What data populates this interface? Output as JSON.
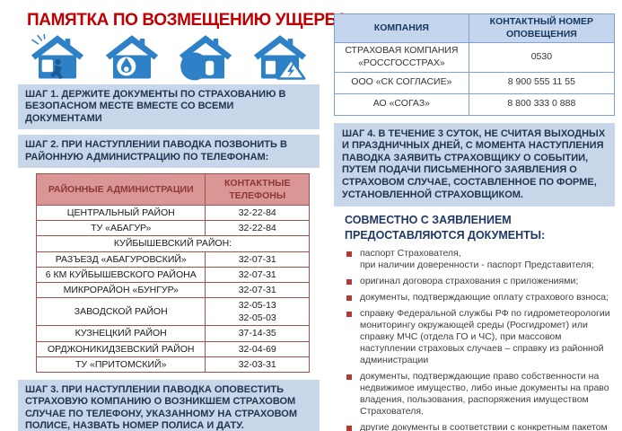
{
  "title": "ПАМЯТКА ПО ВОЗМЕЩЕНИЮ УЩЕРБА",
  "icons": [
    {
      "name": "house-burglary-icon",
      "meaning": "дом — кража"
    },
    {
      "name": "house-fire-icon",
      "meaning": "дом — пожар"
    },
    {
      "name": "house-flood-icon",
      "meaning": "дом — паводок"
    },
    {
      "name": "house-electrical-hazard-icon",
      "meaning": "дом — электроопасность"
    }
  ],
  "steps": {
    "step1": "ШАГ 1. ДЕРЖИТЕ ДОКУМЕНТЫ ПО СТРАХОВАНИЮ В БЕЗОПАСНОМ МЕСТЕ ВМЕСТЕ СО ВСЕМИ ДОКУМЕНТАМИ",
    "step2": "ШАГ 2. ПРИ НАСТУПЛЕНИИ ПАВОДКА ПОЗВОНИТЬ В РАЙОННУЮ АДМИНИСТРАЦИЮ ПО ТЕЛЕФОНАМ:",
    "step3": "ШАГ 3. ПРИ НАСТУПЛЕНИИ ПАВОДКА ОПОВЕСТИТЬ СТРАХОВУЮ КОМПАНИЮ О ВОЗНИКШЕМ СТРАХОВОМ СЛУЧАЕ ПО ТЕЛЕФОНУ, УКАЗАННОМУ НА СТРАХОВОМ ПОЛИСЕ, НАЗВАТЬ НОМЕР ПОЛИСА И ДАТУ.",
    "step4": "ШАГ 4. В ТЕЧЕНИЕ 3 СУТОК, НЕ СЧИТАЯ ВЫХОДНЫХ И ПРАЗДНИЧНЫХ ДНЕЙ, С МОМЕНТА НАСТУПЛЕНИЯ ПАВОДКА ЗАЯВИТЬ СТРАХОВЩИКУ О СОБЫТИИ, ПУТЕМ ПОДАЧИ ПИСЬМЕННОГО ЗАЯВЛЕНИЯ О СТРАХОВОМ СЛУЧАЕ, СОСТАВЛЕННОЕ ПО ФОРМЕ, УСТАНОВЛЕННОЙ СТРАХОВЩИКОМ."
  },
  "admin_table": {
    "headers": [
      "РАЙОННЫЕ АДМИНИСТРАЦИИ",
      "КОНТАКТНЫЕ ТЕЛЕФОНЫ"
    ],
    "rows": [
      {
        "name": "ЦЕНТРАЛЬНЫЙ РАЙОН",
        "phone": "32-22-84"
      },
      {
        "name": "ТУ «АБАГУР»",
        "phone": "32-22-84"
      },
      {
        "name": "КУЙБЫШЕВСКИЙ РАЙОН:",
        "section": true
      },
      {
        "name": "РАЗЪЕЗД «АБАГУРОВСКИЙ»",
        "phone": "32-07-31"
      },
      {
        "name": "6 КМ КУЙБЫШЕВСКОГО РАЙОНА",
        "phone": "32-07-31"
      },
      {
        "name": "МИКРОРАЙОН «БУНГУР»",
        "phone": "32-07-31"
      },
      {
        "name": "ЗАВОДСКОЙ РАЙОН",
        "phone": "32-05-13\n32-05-03"
      },
      {
        "name": "КУЗНЕЦКИЙ РАЙОН",
        "phone": "37-14-35"
      },
      {
        "name": "ОРДЖОНИКИДЗЕВСКИЙ РАЙОН",
        "phone": "32-04-69"
      },
      {
        "name": "ТУ «ПРИТОМСКИЙ»",
        "phone": "32-03-31"
      }
    ]
  },
  "company_table": {
    "headers": [
      "КОМПАНИЯ",
      "КОНТАКТНЫЙ НОМЕР ОПОВЕЩЕНИЯ"
    ],
    "rows": [
      {
        "name": "СТРАХОВАЯ КОМПАНИЯ\n«РОССГОССТРАХ»",
        "phone": "0530"
      },
      {
        "name": "ООО «СК СОГЛАСИЕ»",
        "phone": "8 900 555 11 55"
      },
      {
        "name": "АО «СОГАЗ»",
        "phone": "8 800 333 0 888"
      }
    ]
  },
  "documents": {
    "heading": "СОВМЕСТНО С ЗАЯВЛЕНИЕМ ПРЕДОСТАВЛЯЮТСЯ ДОКУМЕНТЫ:",
    "items": [
      "паспорт Страхователя,\nпри наличии доверенности - паспорт Представителя;",
      "оригинал договора страхования с приложениями;",
      "документы, подтверждающие оплату страхового взноса;",
      "справку Федеральной службы РФ по гидрометеорологии мониторингу окружающей среды (Росгидромет) или справку МЧС (отдела ГО и ЧС), при массовом наступлении страховых случаев – справку из районной администрации",
      "документы, подтверждающие право собственности на недвижимое имущество, либо иные документы на право владения, пользования, распоряжения имуществом Страхователя.",
      "другие документы в соответствии с конкретным пакетом страхования."
    ]
  },
  "colors": {
    "title_red": "#C00000",
    "step_bg": "#C7D6E9",
    "step_text": "#20364F",
    "admin_header_bg": "#DA9694",
    "admin_header_text": "#8C3836",
    "admin_border": "#A0524F",
    "company_header_bg": "#C3D6EE",
    "company_border": "#7FA3CE",
    "heading_blue": "#1F3864",
    "bullet_red": "#B03A36",
    "icon_blue": "#2E81C6"
  }
}
